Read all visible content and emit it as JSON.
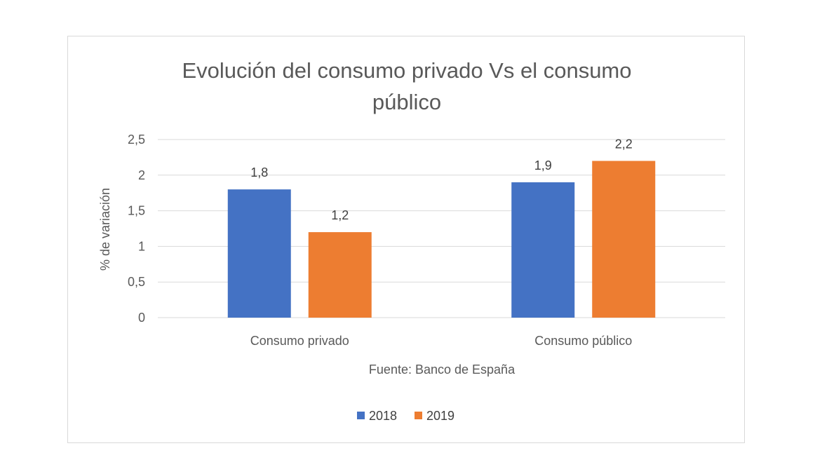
{
  "chart_data": {
    "type": "bar",
    "title_lines": [
      "Evolución del consumo privado Vs el consumo",
      "público"
    ],
    "categories": [
      "Consumo privado",
      "Consumo público"
    ],
    "series": [
      {
        "name": "2018",
        "color": "#4472c4",
        "values": [
          1.8,
          1.9
        ],
        "labels": [
          "1,8",
          "1,9"
        ]
      },
      {
        "name": "2019",
        "color": "#ed7d31",
        "values": [
          1.2,
          2.2
        ],
        "labels": [
          "1,2",
          "2,2"
        ]
      }
    ],
    "ylabel": "% de variación",
    "xlabel": "Fuente: Banco de España",
    "ylim": [
      0,
      2.5
    ],
    "yticks": [
      0,
      0.5,
      1,
      1.5,
      2,
      2.5
    ],
    "ytick_labels": [
      "0",
      "0,5",
      "1",
      "1,5",
      "2",
      "2,5"
    ],
    "grid": true,
    "legend_position": "bottom"
  }
}
